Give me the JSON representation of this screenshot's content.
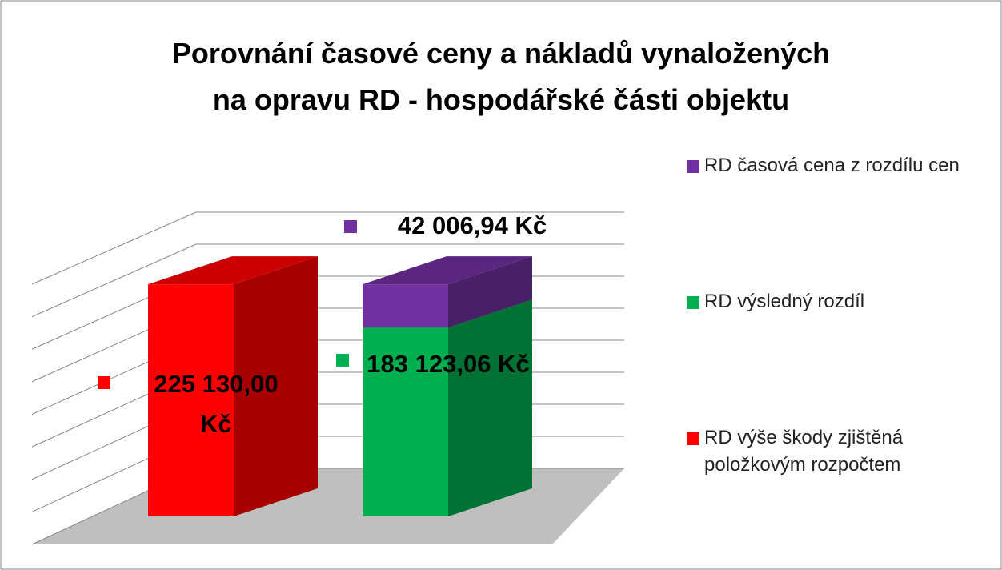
{
  "chart_data": {
    "type": "bar3d_stacked",
    "title": "Porovnání časové ceny a nákladů vynaložených\nna opravu RD - hospodářské části objektu",
    "categories": [
      null,
      null
    ],
    "ylim": [
      0,
      240000
    ],
    "yticks": [
      0,
      30000,
      60000,
      90000,
      120000,
      150000,
      180000,
      210000,
      240000
    ],
    "grid": true,
    "legend": "right",
    "series": [
      {
        "name": "RD výše škody zjištěná položkovým rozpočtem",
        "color": "#ff0000",
        "values": [
          225130.0,
          null
        ],
        "value_labels": [
          "225 130,00 Kč",
          null
        ]
      },
      {
        "name": "RD výsledný rozdíl",
        "color": "#00b050",
        "values": [
          null,
          183123.06
        ],
        "value_labels": [
          null,
          "183 123,06 Kč"
        ]
      },
      {
        "name": "RD časová cena z rozdílu cen",
        "color": "#7030a0",
        "values": [
          null,
          42006.94
        ],
        "value_labels": [
          null,
          "42 006,94 Kč"
        ]
      }
    ]
  }
}
